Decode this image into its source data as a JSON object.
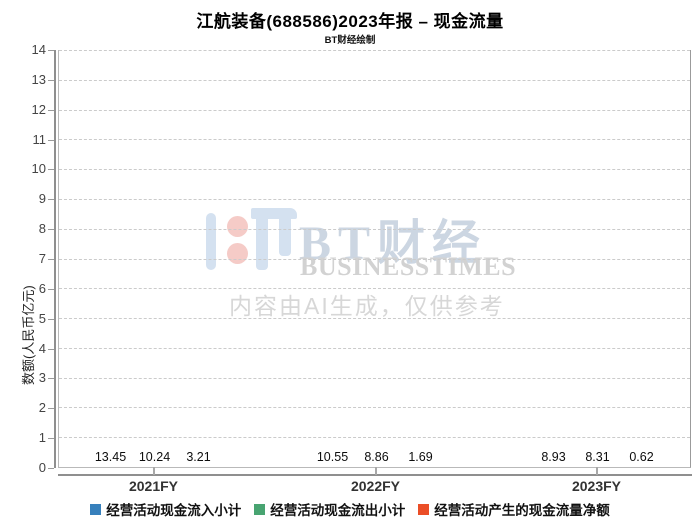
{
  "title": "江航装备(688586)2023年报 – 现金流量",
  "subtitle": "BT财经绘制",
  "chart_data": {
    "type": "bar",
    "categories": [
      "2021FY",
      "2022FY",
      "2023FY"
    ],
    "series": [
      {
        "name": "经营活动现金流入小计",
        "color": "#3780bc",
        "values": [
          13.45,
          10.55,
          8.93
        ]
      },
      {
        "name": "经营活动现金流出小计",
        "color": "#48a471",
        "values": [
          10.24,
          8.86,
          8.31
        ]
      },
      {
        "name": "经营活动产生的现金流量净额",
        "color": "#eb4e27",
        "values": [
          3.21,
          1.69,
          0.62
        ]
      }
    ],
    "value_labels": [
      [
        "13.45",
        "10.55",
        "8.93"
      ],
      [
        "10.24",
        "8.86",
        "8.31"
      ],
      [
        "3.21",
        "1.69",
        "0.62"
      ]
    ],
    "xlabel": "",
    "ylabel": "数额(人民币亿元)",
    "ylim": [
      0,
      14
    ],
    "y_tick_step": 1,
    "grid": "horizontal-dashed",
    "legend_position": "bottom"
  },
  "colors": {
    "grid": "#cbcbcb",
    "axis": "#8f8f8f",
    "tick_label": "#444444",
    "watermark_blue": "#d4e1f0",
    "watermark_pink": "#f5cbc7"
  },
  "watermark": {
    "brand_cn": "BT财经",
    "brand_en": "BUSINESSTIMES",
    "ai_note": "内容由AI生成，仅供参考"
  }
}
